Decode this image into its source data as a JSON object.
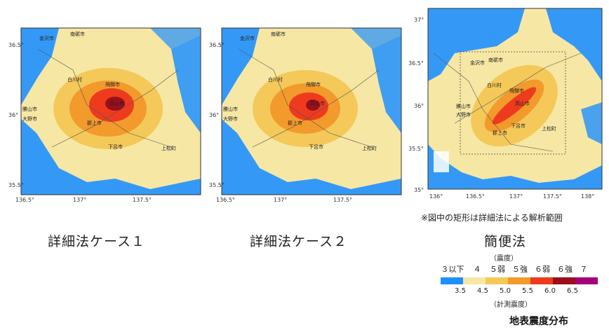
{
  "panels": [
    {
      "caption": "詳細法ケース１",
      "y_ticks": [
        "36.5°",
        "36°",
        "35.5°"
      ],
      "x_ticks": [
        "136.5°",
        "137°",
        "137.5°"
      ],
      "cities": [
        "金沢市",
        "南砺市",
        "白川村",
        "飛騨市",
        "高山市",
        "郡上市",
        "下呂市",
        "上松町",
        "勝山市",
        "大野市"
      ]
    },
    {
      "caption": "詳細法ケース２",
      "y_ticks": [
        "36.5°",
        "36°",
        "35.5°"
      ],
      "x_ticks": [
        "136.5°",
        "137°",
        "137.5°"
      ],
      "cities": [
        "金沢市",
        "南砺市",
        "白川村",
        "飛騨市",
        "高山市",
        "郡上市",
        "下呂市",
        "上松町",
        "勝山市",
        "大野市"
      ]
    },
    {
      "caption": "簡便法",
      "y_ticks": [
        "37°",
        "36.5°",
        "36°",
        "35.5°",
        "35°"
      ],
      "x_ticks": [
        "136°",
        "136.5°",
        "137°",
        "137.5°",
        "138°"
      ],
      "cities": [
        "南砺市",
        "金沢市",
        "白川村",
        "飛騨市",
        "高山市",
        "勝山市",
        "大野市",
        "郡上市",
        "下呂市",
        "上松町"
      ]
    }
  ],
  "note": "※図中の矩形は詳細法による解析範囲",
  "legend": {
    "header_top": "（震度）",
    "intensity_labels": [
      "３以下",
      "４",
      "５弱",
      "５強",
      "６弱",
      "６強",
      "７"
    ],
    "values": [
      "3.5",
      "4.5",
      "5.0",
      "5.5",
      "6.0",
      "6.5"
    ],
    "header_bottom": "（計測震度）",
    "colors": [
      "#1e90ff",
      "#f7e7a4",
      "#f4c95a",
      "#f39a2d",
      "#ee3b1e",
      "#9b0f1a",
      "#a3007a"
    ]
  },
  "title": "地表震度分布"
}
